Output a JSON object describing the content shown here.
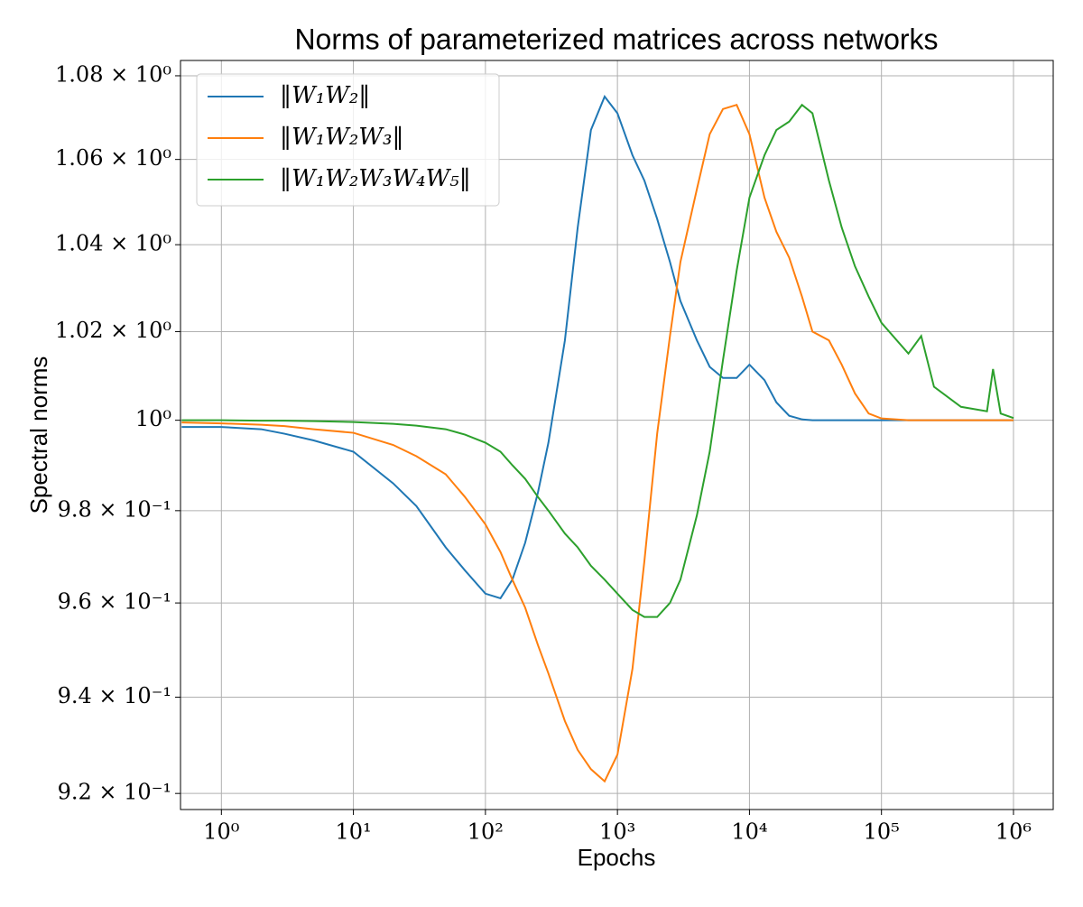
{
  "chart_data": {
    "type": "line",
    "title": "Norms of parameterized matrices across networks",
    "x_label": "Epochs",
    "y_label": "Spectral norms",
    "x_scale": "log",
    "y_scale": "log",
    "grid": true,
    "legend": "upper left",
    "xlim": [
      0.49,
      2000000
    ],
    "ylim": [
      0.9167,
      1.0837
    ],
    "xticks": [
      {
        "value": 1,
        "label": "10⁰"
      },
      {
        "value": 10,
        "label": "10¹"
      },
      {
        "value": 100,
        "label": "10²"
      },
      {
        "value": 1000,
        "label": "10³"
      },
      {
        "value": 10000,
        "label": "10⁴"
      },
      {
        "value": 100000,
        "label": "10⁵"
      },
      {
        "value": 1000000,
        "label": "10⁶"
      }
    ],
    "yticks": [
      {
        "value": 0.92,
        "label": "9.2 × 10⁻¹"
      },
      {
        "value": 0.94,
        "label": "9.4 × 10⁻¹"
      },
      {
        "value": 0.96,
        "label": "9.6 × 10⁻¹"
      },
      {
        "value": 0.98,
        "label": "9.8 × 10⁻¹"
      },
      {
        "value": 1,
        "label": "10⁰"
      },
      {
        "value": 1.02,
        "label": "1.02 × 10⁰"
      },
      {
        "value": 1.04,
        "label": "1.04 × 10⁰"
      },
      {
        "value": 1.06,
        "label": "1.06 × 10⁰"
      },
      {
        "value": 1.08,
        "label": "1.08 × 10⁰"
      }
    ],
    "x": [
      0.5,
      1,
      2,
      3,
      5,
      10,
      20,
      30,
      50,
      70,
      100,
      130,
      160,
      200,
      250,
      300,
      400,
      500,
      630,
      800,
      1000,
      1300,
      1600,
      2000,
      2500,
      3000,
      4000,
      5000,
      6300,
      8000,
      10000,
      13000,
      16000,
      20000,
      25000,
      30000,
      40000,
      50000,
      63000,
      80000,
      100000,
      160000,
      200000,
      250000,
      400000,
      630000,
      700000,
      800000,
      1000000
    ],
    "series": [
      {
        "name": "‖W₁W₂‖",
        "color": "#1f77b4",
        "values": [
          0.9985,
          0.9985,
          0.998,
          0.997,
          0.9955,
          0.993,
          0.986,
          0.981,
          0.972,
          0.967,
          0.962,
          0.961,
          0.965,
          0.973,
          0.984,
          0.995,
          1.018,
          1.044,
          1.067,
          1.075,
          1.071,
          1.061,
          1.055,
          1.046,
          1.036,
          1.027,
          1.018,
          1.012,
          1.0095,
          1.0095,
          1.0125,
          1.009,
          1.004,
          1.001,
          1.0002,
          1,
          1,
          1,
          1,
          1,
          1,
          1,
          1,
          1,
          1,
          1,
          1,
          1,
          1
        ]
      },
      {
        "name": "‖W₁W₂W₃‖",
        "color": "#ff7f0e",
        "values": [
          0.9995,
          0.9993,
          0.999,
          0.9987,
          0.998,
          0.9972,
          0.9945,
          0.992,
          0.988,
          0.983,
          0.977,
          0.971,
          0.965,
          0.959,
          0.951,
          0.945,
          0.935,
          0.929,
          0.925,
          0.9225,
          0.928,
          0.946,
          0.969,
          0.997,
          1.019,
          1.036,
          1.053,
          1.066,
          1.072,
          1.073,
          1.066,
          1.051,
          1.043,
          1.037,
          1.028,
          1.02,
          1.018,
          1.0125,
          1.006,
          1.0015,
          1.0004,
          1,
          1,
          1,
          1,
          1,
          1,
          1,
          1
        ]
      },
      {
        "name": "‖W₁W₂W₃W₄W₅‖",
        "color": "#2ca02c",
        "values": [
          1,
          1,
          0.9999,
          0.9999,
          0.9998,
          0.9996,
          0.9992,
          0.9988,
          0.998,
          0.9968,
          0.995,
          0.993,
          0.99,
          0.987,
          0.983,
          0.98,
          0.975,
          0.972,
          0.968,
          0.965,
          0.962,
          0.9585,
          0.957,
          0.957,
          0.96,
          0.965,
          0.979,
          0.993,
          1.0135,
          1.034,
          1.051,
          1.061,
          1.067,
          1.069,
          1.073,
          1.071,
          1.055,
          1.044,
          1.035,
          1.028,
          1.022,
          1.015,
          1.019,
          1.0075,
          1.003,
          1.002,
          1.0115,
          1.0015,
          1.0005
        ]
      }
    ]
  }
}
